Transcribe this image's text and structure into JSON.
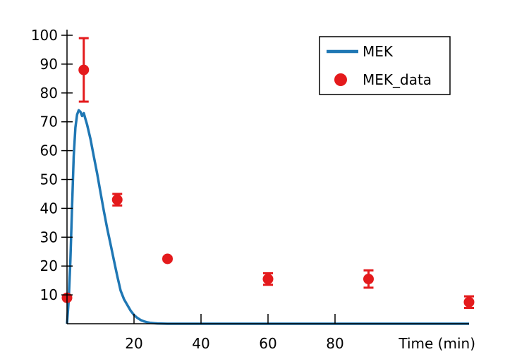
{
  "chart_data": {
    "type": "scatter",
    "xlabel": "Time (min)",
    "ylabel": "",
    "xlim": [
      0,
      120
    ],
    "ylim": [
      0,
      100
    ],
    "x_ticks": [
      20,
      40,
      60,
      80
    ],
    "x_tick_labels": [
      "20",
      "40",
      "60",
      "80"
    ],
    "y_ticks": [
      10,
      20,
      30,
      40,
      50,
      60,
      70,
      80,
      90,
      100
    ],
    "y_tick_labels": [
      "10",
      "20",
      "30",
      "40",
      "50",
      "60",
      "70",
      "80",
      "90",
      "100"
    ],
    "grid": false,
    "legend_position": "top-right",
    "series": [
      {
        "name": "MEK",
        "kind": "line",
        "color": "#1f77b4",
        "x": [
          0,
          0.5,
          1,
          1.5,
          2,
          2.5,
          3,
          3.5,
          4,
          4.5,
          5,
          5.5,
          6,
          7,
          8,
          9,
          10,
          11,
          12,
          13,
          14,
          15,
          16,
          17,
          18,
          19,
          20,
          21,
          22,
          23,
          24,
          25,
          26,
          27,
          28,
          29,
          30,
          35,
          40,
          60,
          80,
          100,
          120
        ],
        "y": [
          0,
          8,
          22,
          40,
          58,
          68,
          72.5,
          74,
          73.5,
          72,
          73,
          71,
          69,
          64,
          58,
          52,
          45.5,
          39,
          33,
          27.5,
          22,
          16.5,
          11.5,
          8.5,
          6.5,
          4.5,
          3,
          2,
          1.3,
          0.8,
          0.5,
          0.3,
          0.2,
          0.1,
          0.05,
          0.02,
          0,
          0,
          0,
          0,
          0,
          0,
          0
        ]
      },
      {
        "name": "MEK_data",
        "kind": "scatter",
        "color": "#e41a1c",
        "x": [
          0,
          5,
          15,
          30,
          60,
          90,
          120
        ],
        "y": [
          9,
          88,
          43,
          22.5,
          15.5,
          15.5,
          7.5
        ],
        "err": [
          0,
          11,
          2,
          0.5,
          2,
          3,
          2
        ]
      }
    ]
  }
}
